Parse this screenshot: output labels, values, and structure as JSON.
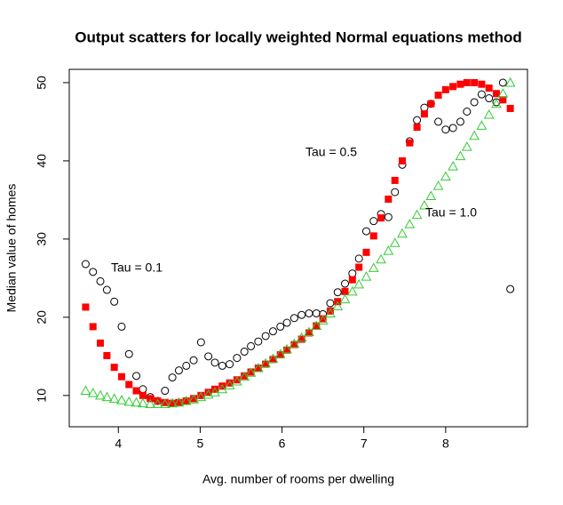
{
  "chart_data": {
    "type": "scatter",
    "title": "Output scatters for locally weighted Normal equations method",
    "x_label": "Avg. number of rooms per dwelling",
    "y_label": "Median value of homes",
    "x": [
      3.6,
      3.69,
      3.78,
      3.86,
      3.95,
      4.04,
      4.13,
      4.22,
      4.3,
      4.39,
      4.48,
      4.57,
      4.66,
      4.74,
      4.83,
      4.92,
      5.01,
      5.1,
      5.18,
      5.27,
      5.36,
      5.45,
      5.54,
      5.62,
      5.71,
      5.8,
      5.89,
      5.98,
      6.06,
      6.15,
      6.24,
      6.33,
      6.42,
      6.5,
      6.59,
      6.68,
      6.77,
      6.86,
      6.94,
      7.03,
      7.12,
      7.21,
      7.3,
      7.38,
      7.47,
      7.56,
      7.65,
      7.74,
      7.82,
      7.91,
      8.0,
      8.09,
      8.18,
      8.26,
      8.35,
      8.44,
      8.53,
      8.62,
      8.7,
      8.79
    ],
    "series": [
      {
        "color": "#000000",
        "marker": "circle",
        "values": [
          26.8,
          25.8,
          24.6,
          23.5,
          22.0,
          18.8,
          15.3,
          12.5,
          10.8,
          9.8,
          9.3,
          10.6,
          12.3,
          13.2,
          13.8,
          14.5,
          16.8,
          15.0,
          14.2,
          13.8,
          14.0,
          14.8,
          15.6,
          16.3,
          16.9,
          17.6,
          18.2,
          18.8,
          19.3,
          19.9,
          20.3,
          20.5,
          20.5,
          20.4,
          21.8,
          23.2,
          24.3,
          25.6,
          27.5,
          31.0,
          32.3,
          33.2,
          32.8,
          36.0,
          39.5,
          42.5,
          45.2,
          46.8,
          47.3,
          45.0,
          44.0,
          44.2,
          45.0,
          46.3,
          47.5,
          48.5,
          48.0,
          47.5,
          50.0,
          23.6
        ]
      },
      {
        "color": "#ff0000",
        "marker": "square",
        "values": [
          21.3,
          18.8,
          16.7,
          15.1,
          13.6,
          12.4,
          11.4,
          10.6,
          10.0,
          9.6,
          9.3,
          9.1,
          9.0,
          9.1,
          9.3,
          9.6,
          10.0,
          10.4,
          10.8,
          11.2,
          11.6,
          12.0,
          12.5,
          13.0,
          13.5,
          14.0,
          14.6,
          15.2,
          15.8,
          16.5,
          17.2,
          18.0,
          18.9,
          19.8,
          20.8,
          22.0,
          23.3,
          24.8,
          26.4,
          28.3,
          30.4,
          32.7,
          35.1,
          37.5,
          40.0,
          42.3,
          44.3,
          46.0,
          47.3,
          48.4,
          49.1,
          49.5,
          49.8,
          50.0,
          50.0,
          49.8,
          49.3,
          48.6,
          47.8,
          46.7
        ]
      },
      {
        "color": "#33cc33",
        "marker": "triangle",
        "values": [
          10.6,
          10.3,
          10.0,
          9.8,
          9.6,
          9.4,
          9.2,
          9.1,
          9.0,
          8.9,
          8.9,
          8.9,
          9.0,
          9.1,
          9.3,
          9.5,
          9.8,
          10.1,
          10.4,
          10.8,
          11.3,
          11.8,
          12.4,
          12.9,
          13.5,
          14.1,
          14.7,
          15.3,
          15.9,
          16.6,
          17.4,
          18.1,
          18.9,
          19.6,
          20.5,
          21.4,
          22.3,
          23.3,
          24.2,
          25.2,
          26.3,
          27.4,
          28.5,
          29.5,
          30.7,
          31.9,
          33.1,
          34.3,
          35.5,
          36.8,
          38.0,
          39.3,
          40.6,
          41.8,
          43.2,
          44.5,
          45.9,
          47.3,
          48.6,
          50.0
        ]
      }
    ],
    "annotations": [
      "Tau = 0.1",
      "Tau = 0.5",
      "Tau = 1.0"
    ],
    "xlim": [
      3.4,
      9.0
    ],
    "ylim": [
      6.0,
      51.7
    ],
    "xticks": [
      4,
      5,
      6,
      7,
      8
    ],
    "yticks": [
      10,
      20,
      30,
      40,
      50
    ]
  }
}
